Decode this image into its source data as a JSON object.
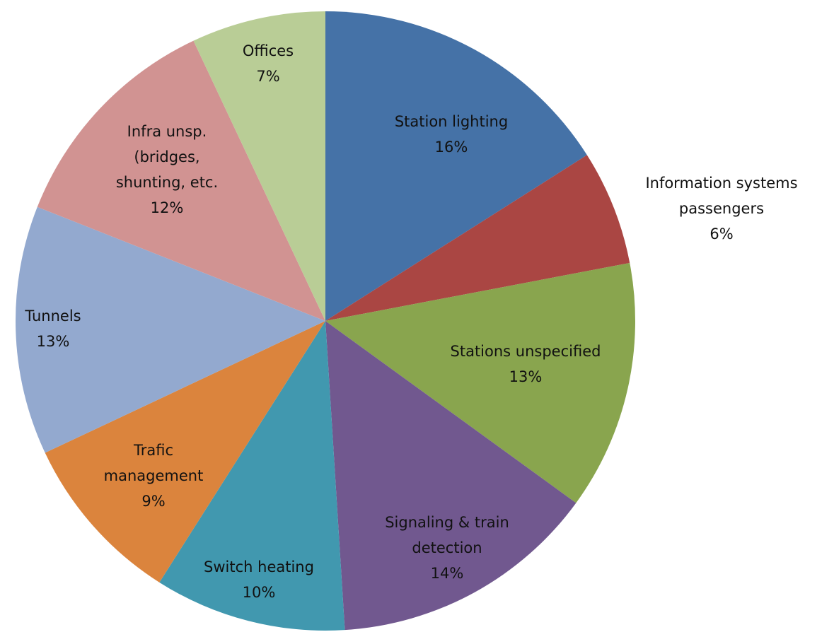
{
  "chart_data": {
    "type": "pie",
    "categories": [
      "Station lighting",
      "Information systems passengers",
      "Stations unspecified",
      "Signaling & train detection",
      "Switch heating",
      "Trafic management",
      "Tunnels",
      "Infra unsp. (bridges, shunting, etc.",
      "Offices"
    ],
    "values": [
      16,
      6,
      13,
      14,
      10,
      9,
      13,
      12,
      7
    ],
    "value_labels": [
      "16%",
      "6%",
      "13%",
      "14%",
      "10%",
      "9%",
      "13%",
      "12%",
      "7%"
    ],
    "colors": [
      "#4572a7",
      "#aa4643",
      "#89a54e",
      "#71588f",
      "#4198af",
      "#db843d",
      "#93a9cf",
      "#d19392",
      "#b9cd96"
    ]
  }
}
